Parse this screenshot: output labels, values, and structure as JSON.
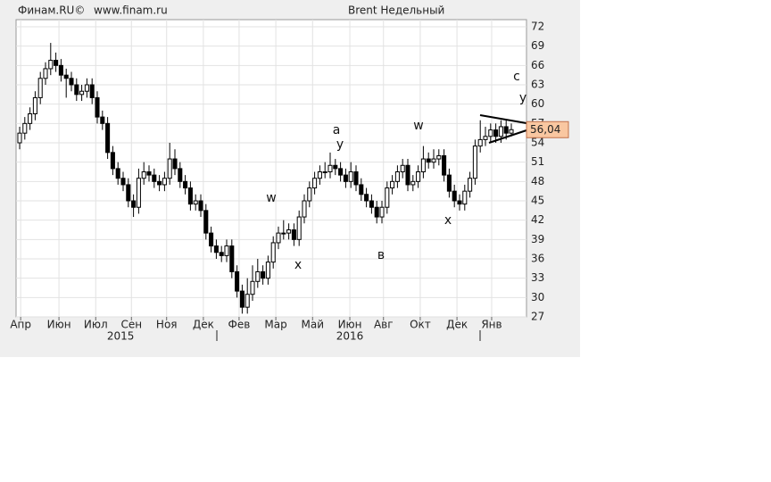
{
  "chart_data": {
    "type": "candlestick",
    "header_left": "Финам.RU©",
    "header_site": "www.finam.ru",
    "title": "Brent Недельный",
    "open": [
      54,
      55.5,
      57,
      58.5,
      61,
      64,
      65.5,
      66.8,
      66,
      64.5,
      64,
      63,
      61.5,
      62,
      63,
      61,
      58,
      57,
      52.5,
      50,
      48.5,
      47.5,
      45,
      44,
      48.5,
      49.5,
      49,
      48,
      47.5,
      48.5,
      51.5,
      50,
      48,
      47,
      44.5,
      45,
      43.5,
      40,
      38,
      37,
      36.5,
      38,
      34,
      31,
      28.5,
      30.5,
      32.5,
      34,
      33,
      35.5,
      38.5,
      40,
      40,
      40.5,
      39,
      42.5,
      45,
      47,
      48.5,
      49.5,
      49.5,
      50.5,
      50,
      49,
      48,
      49.5,
      47.5,
      46,
      45,
      44,
      42.5,
      44,
      47,
      48,
      49.5,
      50.5,
      47.5,
      48,
      49.5,
      51.5,
      51,
      51.5,
      52,
      49,
      46.5,
      45,
      44.5,
      46.5,
      48.5,
      53.5,
      54.5,
      55,
      56,
      55,
      56.5,
      55.5
    ],
    "high": [
      56.5,
      58,
      59.5,
      62,
      65,
      66.5,
      69.5,
      68,
      67,
      65.5,
      65,
      64,
      63,
      64,
      64,
      62,
      59,
      58,
      53.5,
      51,
      49.5,
      48.5,
      46,
      50,
      51,
      50.5,
      50,
      49,
      49.5,
      54,
      53,
      51,
      49,
      48,
      46,
      46,
      44.5,
      41,
      39,
      38,
      39,
      39,
      35,
      32,
      33,
      35,
      36,
      35,
      36.5,
      39.5,
      41,
      42,
      41.5,
      41.5,
      43.5,
      46,
      48,
      49.5,
      50.5,
      51,
      52.5,
      51.5,
      51,
      50,
      51,
      50.5,
      48.5,
      47,
      46,
      45,
      45,
      48,
      49,
      50.5,
      51.5,
      51.5,
      49,
      50.5,
      53.5,
      52.5,
      53,
      53,
      53,
      50,
      47.5,
      46,
      47.5,
      49.5,
      54.5,
      57.5,
      56.5,
      57,
      57,
      57.5,
      57.5,
      57
    ],
    "low": [
      53,
      54.5,
      56,
      57.5,
      60,
      63,
      64.5,
      65,
      63.5,
      61,
      62,
      60.5,
      60.5,
      61,
      60,
      57,
      56,
      51.5,
      49,
      47.5,
      46.5,
      44,
      42.5,
      43,
      47.5,
      48,
      47,
      46.5,
      46.5,
      47.5,
      49,
      47,
      46,
      43.5,
      43.5,
      42.5,
      39,
      37,
      36,
      35.5,
      35.5,
      33,
      30,
      27.5,
      27.5,
      29.5,
      31.5,
      32,
      32,
      34.5,
      37.5,
      39,
      39,
      38,
      38,
      41.5,
      44,
      46,
      47.5,
      48.5,
      48.5,
      49,
      48,
      47,
      47,
      46.5,
      45,
      44,
      43,
      41.5,
      41.5,
      43,
      46,
      47,
      48.5,
      46.5,
      46.5,
      47,
      48.5,
      50,
      50,
      50.5,
      48,
      45.5,
      44,
      43.5,
      43.5,
      45.5,
      47.5,
      52.5,
      53.5,
      54,
      54,
      54,
      54.5,
      55
    ],
    "close": [
      55.5,
      57,
      58.5,
      61,
      64,
      65.5,
      66.8,
      66,
      64.5,
      64,
      63,
      61.5,
      62,
      63,
      61,
      58,
      57,
      52.5,
      50,
      48.5,
      47.5,
      45,
      44,
      48.5,
      49.5,
      49,
      48,
      47.5,
      48.5,
      51.5,
      50,
      48,
      47,
      44.5,
      45,
      43.5,
      40,
      38,
      37,
      36.5,
      38,
      34,
      31,
      28.5,
      30.5,
      32.5,
      34,
      33,
      35.5,
      38.5,
      40,
      40,
      40.5,
      39,
      42.5,
      45,
      47,
      48.5,
      49.5,
      49.5,
      50.5,
      50,
      49,
      48,
      49.5,
      47.5,
      46,
      45,
      44,
      42.5,
      44,
      47,
      48,
      49.5,
      50.5,
      47.5,
      48,
      49.5,
      51.5,
      51,
      51.5,
      52,
      49,
      46.5,
      45,
      44.5,
      46.5,
      48.5,
      53.5,
      54.5,
      55,
      56,
      55,
      56.5,
      55.5,
      56.04
    ],
    "last_price": {
      "value": 56.04,
      "label": "56,04"
    },
    "up_color": "#ffffff",
    "down_color": "#000000",
    "ylim": [
      27,
      72
    ],
    "yticks": [
      27,
      30,
      33,
      36,
      39,
      42,
      45,
      48,
      51,
      54,
      57,
      60,
      63,
      66,
      69,
      72
    ],
    "xlim": [
      0,
      95
    ],
    "xticks": [
      {
        "value": 0.2,
        "label": "Апр"
      },
      {
        "value": 7.6,
        "label": "Июн"
      },
      {
        "value": 14.7,
        "label": "Июл"
      },
      {
        "value": 21.6,
        "label": "Сен"
      },
      {
        "value": 28.4,
        "label": "Ноя"
      },
      {
        "value": 35.5,
        "label": "Дек"
      },
      {
        "value": 42.4,
        "label": "Фев"
      },
      {
        "value": 49.5,
        "label": "Мар"
      },
      {
        "value": 56.6,
        "label": "Май"
      },
      {
        "value": 63.8,
        "label": "Июн"
      },
      {
        "value": 70.3,
        "label": "Авг"
      },
      {
        "value": 77.4,
        "label": "Окт"
      },
      {
        "value": 84.5,
        "label": "Дек"
      },
      {
        "value": 91.2,
        "label": "Янв"
      }
    ],
    "year_labels": [
      {
        "value": 19.5,
        "label": "2015"
      },
      {
        "value": 63.8,
        "label": "2016"
      }
    ],
    "grid": true,
    "annotations": [
      "w",
      "x",
      "a",
      "y",
      "в",
      "w",
      "x",
      "c",
      "y"
    ]
  }
}
